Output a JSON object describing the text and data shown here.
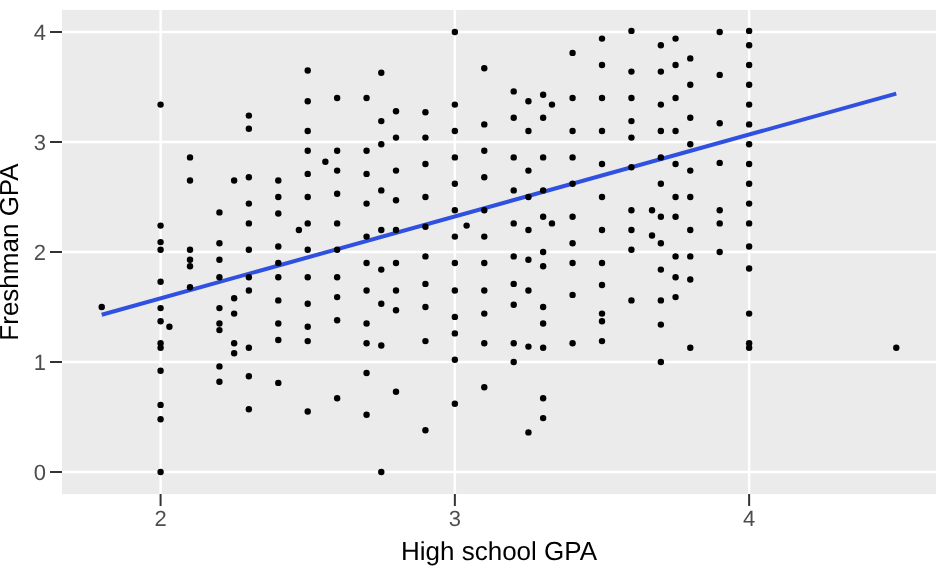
{
  "chart_data": {
    "type": "scatter",
    "xlabel": "High school GPA",
    "ylabel": "Freshman GPA",
    "xlim": [
      1.665,
      4.635
    ],
    "ylim": [
      -0.2,
      4.2
    ],
    "xticks": [
      2,
      3,
      4
    ],
    "yticks": [
      0,
      1,
      2,
      3,
      4
    ],
    "grid": true,
    "series": [
      {
        "marker": "circle",
        "color": "#000000",
        "x": [
          1.8,
          2,
          2,
          2,
          2,
          2,
          2,
          2,
          2,
          2,
          2,
          2,
          2,
          2,
          2.03,
          2.1,
          2.1,
          2.1,
          2.1,
          2.1,
          2.1,
          2.2,
          2.2,
          2.2,
          2.2,
          2.2,
          2.2,
          2.2,
          2.2,
          2.2,
          2.25,
          2.25,
          2.25,
          2.25,
          2.25,
          2.3,
          2.3,
          2.3,
          2.3,
          2.3,
          2.3,
          2.3,
          2.3,
          2.3,
          2.3,
          2.3,
          2.4,
          2.4,
          2.4,
          2.4,
          2.4,
          2.4,
          2.4,
          2.4,
          2.4,
          2.4,
          2.47,
          2.5,
          2.5,
          2.5,
          2.5,
          2.5,
          2.5,
          2.5,
          2.5,
          2.5,
          2.5,
          2.5,
          2.5,
          2.5,
          2.56,
          2.6,
          2.6,
          2.6,
          2.6,
          2.6,
          2.6,
          2.6,
          2.6,
          2.6,
          2.6,
          2.7,
          2.7,
          2.7,
          2.7,
          2.7,
          2.7,
          2.7,
          2.7,
          2.7,
          2.7,
          2.7,
          2.75,
          2.75,
          2.75,
          2.75,
          2.75,
          2.75,
          2.75,
          2.75,
          2.75,
          2.8,
          2.8,
          2.8,
          2.8,
          2.8,
          2.8,
          2.8,
          2.8,
          2.8,
          2.9,
          2.9,
          2.9,
          2.9,
          2.9,
          2.9,
          2.9,
          2.9,
          2.9,
          2.9,
          3,
          3,
          3,
          3,
          3,
          3,
          3,
          3,
          3,
          3,
          3,
          3,
          3,
          3.04,
          3.1,
          3.1,
          3.1,
          3.1,
          3.1,
          3.1,
          3.1,
          3.1,
          3.1,
          3.1,
          3.1,
          3.2,
          3.2,
          3.2,
          3.2,
          3.2,
          3.2,
          3.2,
          3.2,
          3.2,
          3.2,
          3.25,
          3.25,
          3.25,
          3.25,
          3.25,
          3.25,
          3.25,
          3.25,
          3.25,
          3.3,
          3.3,
          3.3,
          3.3,
          3.3,
          3.3,
          3.3,
          3.3,
          3.3,
          3.3,
          3.3,
          3.3,
          3.33,
          3.33,
          3.4,
          3.4,
          3.4,
          3.4,
          3.4,
          3.4,
          3.4,
          3.4,
          3.4,
          3.4,
          3.5,
          3.5,
          3.5,
          3.5,
          3.5,
          3.5,
          3.5,
          3.5,
          3.5,
          3.5,
          3.5,
          3.5,
          3.6,
          3.6,
          3.6,
          3.6,
          3.6,
          3.6,
          3.6,
          3.6,
          3.6,
          3.6,
          3.67,
          3.67,
          3.7,
          3.7,
          3.7,
          3.7,
          3.7,
          3.7,
          3.7,
          3.7,
          3.7,
          3.7,
          3.7,
          3.7,
          3.75,
          3.75,
          3.75,
          3.75,
          3.75,
          3.75,
          3.75,
          3.75,
          3.75,
          3.75,
          3.8,
          3.8,
          3.8,
          3.8,
          3.8,
          3.8,
          3.8,
          3.8,
          3.8,
          3.8,
          3.9,
          3.9,
          3.9,
          3.9,
          3.9,
          3.9,
          3.9,
          4,
          4,
          4,
          4,
          4,
          4,
          4,
          4,
          4,
          4,
          4,
          4,
          4,
          4,
          4,
          4,
          4.5
        ],
        "values": [
          1.5,
          3.34,
          2.24,
          2.09,
          2.02,
          1.73,
          1.49,
          1.37,
          1.17,
          1.13,
          0.92,
          0.61,
          0.48,
          0,
          1.32,
          2.86,
          2.65,
          2.02,
          1.93,
          1.87,
          1.68,
          2.36,
          2.08,
          1.93,
          1.77,
          1.49,
          1.35,
          1.29,
          0.96,
          0.82,
          2.65,
          1.58,
          1.44,
          1.17,
          1.08,
          3.24,
          3.12,
          2.68,
          2.44,
          2.26,
          2.02,
          1.77,
          1.65,
          1.13,
          0.87,
          0.57,
          2.65,
          2.5,
          2.35,
          2.05,
          1.9,
          1.77,
          1.56,
          1.35,
          1.2,
          0.81,
          2.2,
          3.65,
          3.37,
          3.1,
          2.92,
          2.71,
          2.5,
          2.26,
          2.02,
          1.77,
          1.53,
          1.32,
          1.19,
          0.55,
          2.82,
          3.4,
          2.92,
          2.74,
          2.53,
          2.26,
          2.02,
          1.77,
          1.59,
          1.38,
          0.67,
          3.4,
          2.92,
          2.71,
          2.44,
          2.14,
          1.9,
          1.65,
          1.35,
          1.17,
          0.9,
          0.52,
          3.63,
          3.19,
          2.98,
          2.56,
          2.2,
          1.84,
          1.53,
          1.15,
          0,
          3.28,
          3.04,
          2.74,
          2.47,
          2.2,
          1.9,
          1.65,
          1.47,
          0.73,
          3.27,
          3.04,
          2.8,
          2.5,
          2.23,
          1.96,
          1.71,
          1.5,
          1.19,
          0.38,
          4,
          3.34,
          3.1,
          2.86,
          2.62,
          2.38,
          2.14,
          1.9,
          1.65,
          1.41,
          1.26,
          1.02,
          0.62,
          2.24,
          3.67,
          3.16,
          2.92,
          2.68,
          2.38,
          2.14,
          1.9,
          1.65,
          1.44,
          1.17,
          0.77,
          3.46,
          3.22,
          2.86,
          2.56,
          2.26,
          1.96,
          1.71,
          1.52,
          1.17,
          1,
          3.37,
          3.1,
          2.74,
          2.5,
          2.2,
          1.93,
          1.65,
          1.14,
          0.36,
          3.43,
          3.22,
          2.86,
          2.56,
          2.32,
          2,
          1.87,
          1.5,
          1.35,
          1.13,
          0.67,
          0.49,
          3.34,
          2.26,
          3.81,
          3.4,
          3.1,
          2.86,
          2.62,
          2.32,
          2.08,
          1.9,
          1.61,
          1.17,
          3.94,
          3.7,
          3.4,
          3.1,
          2.8,
          2.5,
          2.2,
          1.9,
          1.7,
          1.44,
          1.37,
          1.19,
          4.01,
          3.64,
          3.4,
          3.19,
          3.04,
          2.77,
          2.38,
          2.2,
          2.02,
          1.56,
          2.38,
          2.15,
          3.88,
          3.64,
          3.34,
          3.1,
          2.86,
          2.62,
          2.32,
          2.08,
          1.84,
          1.56,
          1.34,
          1,
          3.94,
          3.7,
          3.4,
          3.1,
          2.8,
          2.5,
          2.32,
          1.96,
          1.77,
          1.59,
          3.76,
          3.52,
          3.22,
          2.98,
          2.74,
          2.5,
          2.2,
          1.96,
          1.75,
          1.13,
          4,
          3.61,
          3.17,
          2.81,
          2.38,
          2.26,
          2,
          4.01,
          3.88,
          3.7,
          3.52,
          3.34,
          3.16,
          2.98,
          2.8,
          2.62,
          2.44,
          2.26,
          2.05,
          1.85,
          1.44,
          1.17,
          1.13,
          1.13
        ]
      },
      {
        "type": "line",
        "color": "#3050e0",
        "x": [
          1.8,
          4.5
        ],
        "values": [
          1.43,
          3.44
        ]
      }
    ]
  }
}
